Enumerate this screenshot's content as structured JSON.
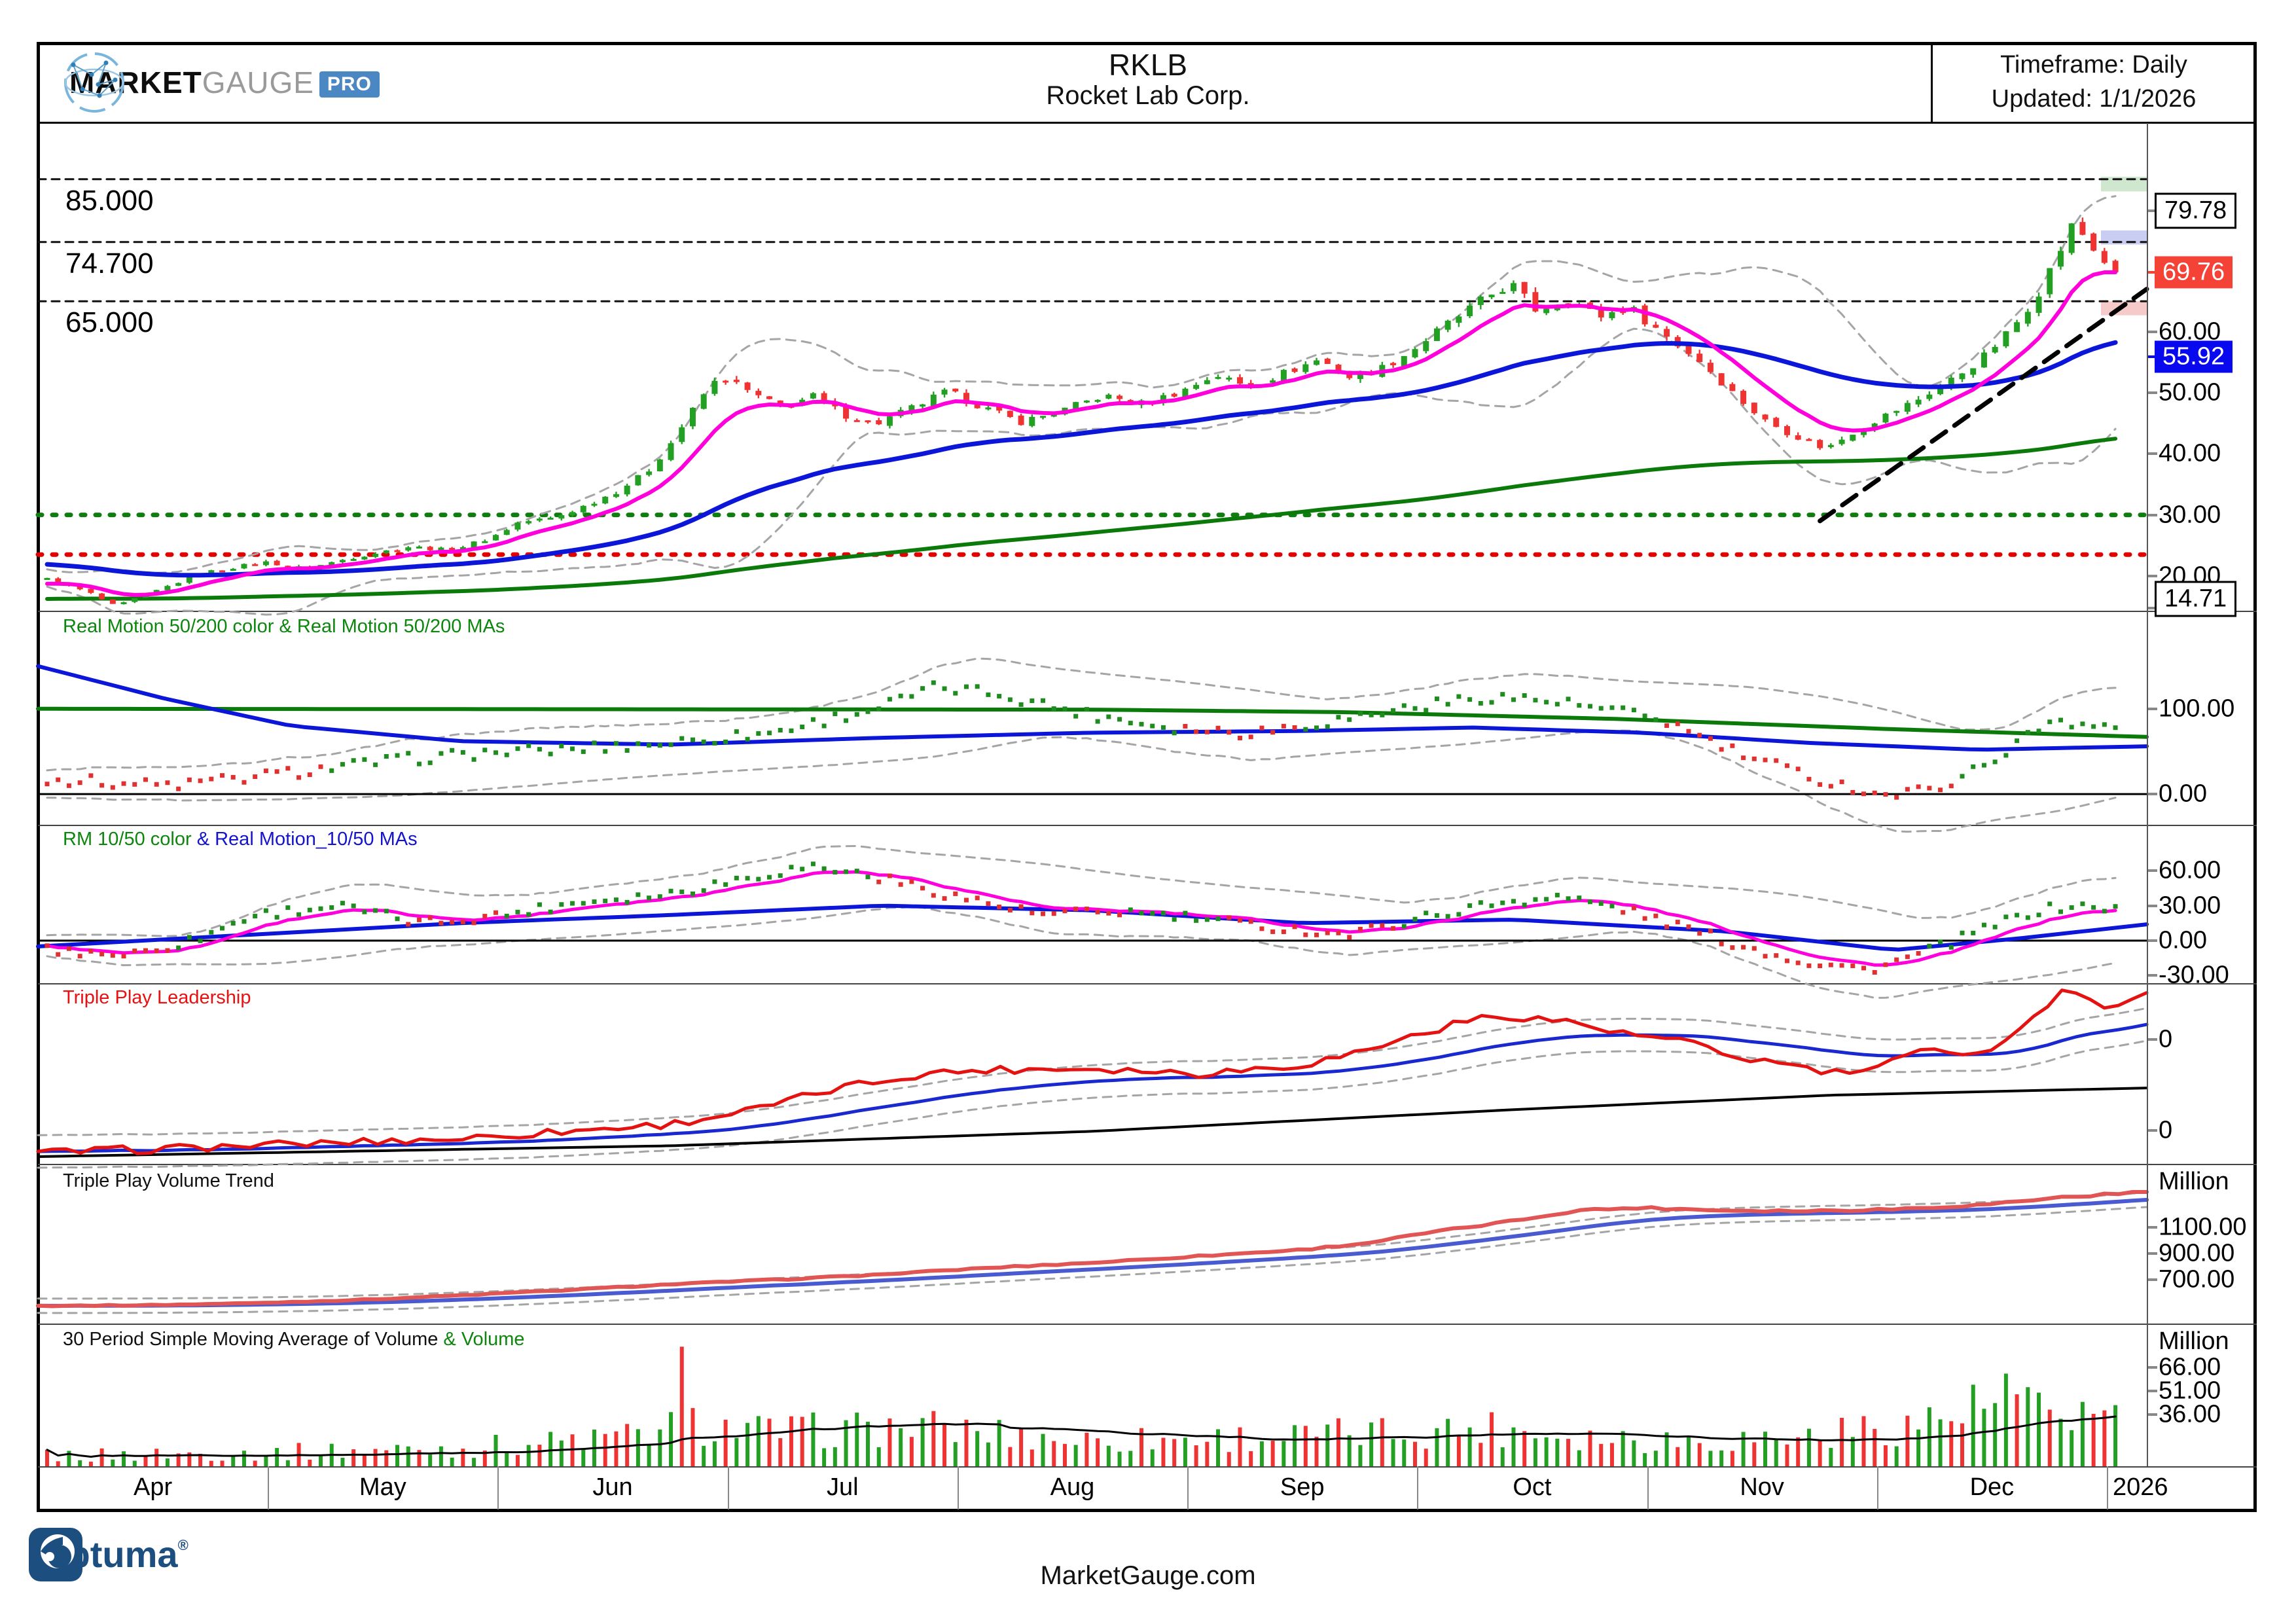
{
  "header": {
    "logo": {
      "market": "MARKET",
      "gauge": "GAUGE",
      "pro": "PRO"
    },
    "symbol": "RKLB",
    "company": "Rocket Lab Corp.",
    "timeframe": "Timeframe: Daily",
    "updated": "Updated: 1/1/2026"
  },
  "footer": {
    "optuma": "Optuma",
    "reg": "®",
    "site": "MarketGauge.com"
  },
  "colors": {
    "candle_up": "#23a023",
    "candle_down": "#ef3333",
    "ma_fast": "#ff00dd",
    "ma_50": "#0b16d8",
    "ma_200": "#0b7a0b",
    "band": "#a5a5a5",
    "badge_red": "#f44336",
    "badge_blue": "#0909ef",
    "zone_green": "#cfe7cf",
    "zone_blue": "#c9cdf2",
    "zone_pink": "#f7caca",
    "dotted_green": "#0f7d0f",
    "dotted_red": "#e00000",
    "optuma_navy": "#1c4e80",
    "pro_badge": "#4b87c2"
  },
  "x_axis": {
    "months": [
      "Apr",
      "May",
      "Jun",
      "Jul",
      "Aug",
      "Sep",
      "Oct",
      "Nov",
      "Dec"
    ],
    "year_partial": "2026"
  },
  "chart_data": [
    {
      "name": "price",
      "type": "candlestick",
      "ylim": [
        14.3,
        94.2
      ],
      "right_ticks": [
        {
          "value": 60,
          "label": "60.00"
        },
        {
          "value": 50,
          "label": "50.00"
        },
        {
          "value": 40,
          "label": "40.00"
        },
        {
          "value": 30,
          "label": "30.00"
        },
        {
          "value": 20,
          "label": "20.00"
        }
      ],
      "price_labels": [
        {
          "value": 79.78,
          "label": "79.78",
          "style": "boxed"
        },
        {
          "value": 69.76,
          "label": "69.76",
          "style": "red"
        },
        {
          "value": 55.92,
          "label": "55.92",
          "style": "blue"
        },
        {
          "value": 14.71,
          "label": "14.71",
          "style": "boxed",
          "shift": -14
        }
      ],
      "left_levels": [
        {
          "value": 85,
          "label": "85.000"
        },
        {
          "value": 74.7,
          "label": "74.700"
        },
        {
          "value": 65,
          "label": "65.000"
        }
      ],
      "dotted_lines": [
        {
          "value": 30,
          "color": "#0f7d0f"
        },
        {
          "value": 23.5,
          "color": "#e00000"
        }
      ],
      "zones": [
        {
          "from": 83.0,
          "to": 85.4,
          "color": "#cfe7cf"
        },
        {
          "from": 74.3,
          "to": 76.6,
          "color": "#c9cdf2"
        },
        {
          "from": 62.7,
          "to": 65.0,
          "color": "#f7caca"
        }
      ],
      "trendline": [
        [
          0.845,
          29
        ],
        [
          1,
          67
        ]
      ],
      "close_keyframes": [
        [
          0,
          19.5
        ],
        [
          0.02,
          17.3
        ],
        [
          0.033,
          15
        ],
        [
          0.05,
          17.2
        ],
        [
          0.075,
          20.5
        ],
        [
          0.105,
          22.3
        ],
        [
          0.125,
          21.2
        ],
        [
          0.15,
          23.2
        ],
        [
          0.175,
          24.8
        ],
        [
          0.195,
          24.2
        ],
        [
          0.215,
          26.3
        ],
        [
          0.228,
          28.8
        ],
        [
          0.245,
          29.5
        ],
        [
          0.26,
          31.5
        ],
        [
          0.275,
          33.8
        ],
        [
          0.29,
          37
        ],
        [
          0.3,
          41
        ],
        [
          0.31,
          46
        ],
        [
          0.318,
          50
        ],
        [
          0.326,
          52.8
        ],
        [
          0.34,
          50
        ],
        [
          0.355,
          47.5
        ],
        [
          0.37,
          49.5
        ],
        [
          0.385,
          46.5
        ],
        [
          0.4,
          44.8
        ],
        [
          0.42,
          47.8
        ],
        [
          0.435,
          50.2
        ],
        [
          0.45,
          48
        ],
        [
          0.47,
          45.2
        ],
        [
          0.49,
          47
        ],
        [
          0.51,
          49.5
        ],
        [
          0.53,
          48.2
        ],
        [
          0.55,
          50.5
        ],
        [
          0.565,
          53
        ],
        [
          0.58,
          51
        ],
        [
          0.6,
          53.5
        ],
        [
          0.615,
          55.5
        ],
        [
          0.63,
          52.5
        ],
        [
          0.645,
          54
        ],
        [
          0.66,
          57
        ],
        [
          0.68,
          62
        ],
        [
          0.7,
          66.5
        ],
        [
          0.708,
          67.8
        ],
        [
          0.72,
          63.5
        ],
        [
          0.735,
          65.5
        ],
        [
          0.75,
          62.5
        ],
        [
          0.765,
          64
        ],
        [
          0.78,
          60
        ],
        [
          0.8,
          55
        ],
        [
          0.815,
          50
        ],
        [
          0.83,
          45.5
        ],
        [
          0.845,
          43
        ],
        [
          0.86,
          40.8
        ],
        [
          0.875,
          44
        ],
        [
          0.89,
          46.5
        ],
        [
          0.905,
          49
        ],
        [
          0.92,
          52
        ],
        [
          0.935,
          55.5
        ],
        [
          0.95,
          60.5
        ],
        [
          0.962,
          66
        ],
        [
          0.972,
          72.5
        ],
        [
          0.98,
          78
        ],
        [
          0.988,
          74
        ],
        [
          1,
          69.76
        ]
      ],
      "last_close": 69.76,
      "ma50_last": 55.92,
      "high_label": 79.78,
      "low_label": 14.71
    },
    {
      "name": "real_motion_50_200",
      "type": "dots+lines",
      "title_parts": [
        {
          "text": "Real Motion 50/200 color & Real Motion 50/200 MAs",
          "color": "#0d860d"
        }
      ],
      "ylim": [
        -36,
        215
      ],
      "right_ticks": [
        {
          "value": 100,
          "label": "100.00"
        },
        {
          "value": 0,
          "label": "0.00"
        }
      ],
      "zero_line": 0,
      "dot_keyframes": [
        [
          0,
          18
        ],
        [
          0.03,
          14
        ],
        [
          0.06,
          10
        ],
        [
          0.1,
          20
        ],
        [
          0.135,
          30
        ],
        [
          0.17,
          40
        ],
        [
          0.21,
          48
        ],
        [
          0.25,
          52
        ],
        [
          0.3,
          60
        ],
        [
          0.35,
          72
        ],
        [
          0.4,
          100
        ],
        [
          0.43,
          125
        ],
        [
          0.46,
          118
        ],
        [
          0.5,
          95
        ],
        [
          0.545,
          78
        ],
        [
          0.58,
          72
        ],
        [
          0.62,
          85
        ],
        [
          0.66,
          102
        ],
        [
          0.7,
          115
        ],
        [
          0.73,
          108
        ],
        [
          0.78,
          88
        ],
        [
          0.82,
          45
        ],
        [
          0.86,
          15
        ],
        [
          0.89,
          -2
        ],
        [
          0.91,
          5
        ],
        [
          0.93,
          25
        ],
        [
          0.95,
          55
        ],
        [
          0.97,
          88
        ],
        [
          1,
          78
        ]
      ],
      "dot_color_segments": [
        [
          0,
          0.135,
          "red"
        ],
        [
          0.135,
          0.545,
          "green"
        ],
        [
          0.545,
          0.605,
          "red"
        ],
        [
          0.605,
          0.78,
          "green"
        ],
        [
          0.78,
          0.925,
          "red"
        ],
        [
          0.925,
          1,
          "green"
        ]
      ],
      "line_green_keyframes": [
        [
          0,
          100
        ],
        [
          0.5,
          99
        ],
        [
          0.62,
          96
        ],
        [
          0.75,
          88
        ],
        [
          0.88,
          76
        ],
        [
          1,
          67
        ]
      ],
      "line_blue_keyframes": [
        [
          0,
          150
        ],
        [
          0.06,
          112
        ],
        [
          0.12,
          80
        ],
        [
          0.2,
          62
        ],
        [
          0.3,
          58
        ],
        [
          0.4,
          66
        ],
        [
          0.5,
          72
        ],
        [
          0.6,
          74
        ],
        [
          0.68,
          78
        ],
        [
          0.76,
          72
        ],
        [
          0.84,
          60
        ],
        [
          0.92,
          52
        ],
        [
          1,
          56
        ]
      ]
    },
    {
      "name": "real_motion_10_50",
      "type": "dots+lines",
      "title_parts": [
        {
          "text": "RM 10/50 color",
          "color": "#0d860d"
        },
        {
          "text": " & Real Motion_10/50 MAs",
          "color": "#1414cc"
        }
      ],
      "ylim": [
        -36.5,
        99.4
      ],
      "right_ticks": [
        {
          "value": 60,
          "label": "60.00"
        },
        {
          "value": 30,
          "label": "30.00"
        },
        {
          "value": 0,
          "label": "0.00"
        },
        {
          "value": -30,
          "label": "-30.00"
        }
      ],
      "zero_line": 0,
      "dot_keyframes": [
        [
          0,
          -8
        ],
        [
          0.04,
          -12
        ],
        [
          0.07,
          0
        ],
        [
          0.1,
          22
        ],
        [
          0.14,
          30
        ],
        [
          0.18,
          15
        ],
        [
          0.22,
          22
        ],
        [
          0.26,
          34
        ],
        [
          0.3,
          40
        ],
        [
          0.34,
          55
        ],
        [
          0.37,
          64
        ],
        [
          0.4,
          55
        ],
        [
          0.44,
          38
        ],
        [
          0.48,
          22
        ],
        [
          0.52,
          25
        ],
        [
          0.56,
          18
        ],
        [
          0.6,
          10
        ],
        [
          0.63,
          5
        ],
        [
          0.66,
          18
        ],
        [
          0.7,
          32
        ],
        [
          0.73,
          38
        ],
        [
          0.76,
          28
        ],
        [
          0.79,
          12
        ],
        [
          0.82,
          -5
        ],
        [
          0.85,
          -18
        ],
        [
          0.88,
          -25
        ],
        [
          0.9,
          -15
        ],
        [
          0.92,
          -2
        ],
        [
          0.94,
          12
        ],
        [
          0.96,
          25
        ],
        [
          0.98,
          30
        ],
        [
          1,
          27
        ]
      ],
      "dot_color_segments": [
        [
          0,
          0.06,
          "red"
        ],
        [
          0.06,
          0.17,
          "green"
        ],
        [
          0.17,
          0.22,
          "red"
        ],
        [
          0.22,
          0.4,
          "green"
        ],
        [
          0.4,
          0.52,
          "red"
        ],
        [
          0.52,
          0.57,
          "green"
        ],
        [
          0.57,
          0.655,
          "red"
        ],
        [
          0.655,
          0.76,
          "green"
        ],
        [
          0.76,
          0.91,
          "red"
        ],
        [
          0.91,
          1,
          "green"
        ]
      ],
      "line_blue_keyframes": [
        [
          0,
          -5
        ],
        [
          0.1,
          5
        ],
        [
          0.2,
          15
        ],
        [
          0.3,
          22
        ],
        [
          0.4,
          30
        ],
        [
          0.5,
          26
        ],
        [
          0.6,
          15
        ],
        [
          0.7,
          18
        ],
        [
          0.8,
          8
        ],
        [
          0.88,
          -8
        ],
        [
          0.94,
          2
        ],
        [
          1,
          14
        ]
      ]
    },
    {
      "name": "triple_play_leadership",
      "type": "lines",
      "title_parts": [
        {
          "text": "Triple Play Leadership",
          "color": "#e81010"
        }
      ],
      "ylim": [
        0,
        100
      ],
      "right_ticks": [
        {
          "value": 68.8,
          "label": "0"
        },
        {
          "value": 18.5,
          "label": "0"
        }
      ],
      "red_keyframes": [
        [
          0,
          6
        ],
        [
          0.05,
          8
        ],
        [
          0.1,
          10
        ],
        [
          0.15,
          12
        ],
        [
          0.2,
          14
        ],
        [
          0.25,
          18
        ],
        [
          0.3,
          22
        ],
        [
          0.34,
          30
        ],
        [
          0.38,
          42
        ],
        [
          0.42,
          50
        ],
        [
          0.45,
          52
        ],
        [
          0.5,
          53
        ],
        [
          0.55,
          50
        ],
        [
          0.6,
          55
        ],
        [
          0.62,
          60
        ],
        [
          0.65,
          70
        ],
        [
          0.68,
          80
        ],
        [
          0.7,
          82
        ],
        [
          0.73,
          78
        ],
        [
          0.75,
          72
        ],
        [
          0.78,
          68
        ],
        [
          0.8,
          60
        ],
        [
          0.83,
          55
        ],
        [
          0.85,
          50
        ],
        [
          0.87,
          52
        ],
        [
          0.9,
          65
        ],
        [
          0.92,
          60
        ],
        [
          0.94,
          75
        ],
        [
          0.96,
          95
        ],
        [
          0.98,
          88
        ],
        [
          1,
          93
        ]
      ],
      "black_keyframes": [
        [
          0,
          4
        ],
        [
          0.3,
          10
        ],
        [
          0.5,
          18
        ],
        [
          0.7,
          30
        ],
        [
          0.85,
          38
        ],
        [
          1,
          42
        ]
      ]
    },
    {
      "name": "triple_play_volume_trend",
      "type": "lines",
      "title_parts": [
        {
          "text": "Triple Play Volume Trend",
          "color": "#111111"
        }
      ],
      "unit": "Million",
      "ylim": [
        365,
        1585
      ],
      "right_ticks": [
        {
          "value": 1100,
          "label": "1100.00"
        },
        {
          "value": 900,
          "label": "900.00"
        },
        {
          "value": 700,
          "label": "700.00"
        }
      ],
      "red_keyframes": [
        [
          0,
          500
        ],
        [
          0.05,
          505
        ],
        [
          0.1,
          520
        ],
        [
          0.15,
          545
        ],
        [
          0.2,
          580
        ],
        [
          0.25,
          620
        ],
        [
          0.3,
          665
        ],
        [
          0.35,
          700
        ],
        [
          0.4,
          740
        ],
        [
          0.45,
          790
        ],
        [
          0.5,
          830
        ],
        [
          0.55,
          880
        ],
        [
          0.6,
          930
        ],
        [
          0.63,
          980
        ],
        [
          0.66,
          1060
        ],
        [
          0.7,
          1150
        ],
        [
          0.73,
          1230
        ],
        [
          0.76,
          1250
        ],
        [
          0.8,
          1230
        ],
        [
          0.84,
          1225
        ],
        [
          0.88,
          1240
        ],
        [
          0.92,
          1270
        ],
        [
          0.96,
          1330
        ],
        [
          1,
          1370
        ]
      ]
    },
    {
      "name": "volume",
      "type": "bars",
      "title_parts": [
        {
          "text": "30 Period Simple Moving Average of Volume",
          "color": "#111111"
        },
        {
          "text": " & Volume",
          "color": "#0d860d"
        }
      ],
      "unit": "Million",
      "ylim": [
        3.5,
        93.6
      ],
      "right_ticks": [
        {
          "value": 66,
          "label": "66.00"
        },
        {
          "value": 51,
          "label": "51.00"
        },
        {
          "value": 36,
          "label": "36.00"
        }
      ],
      "volume_keyframes": [
        [
          0,
          10
        ],
        [
          0.1,
          12
        ],
        [
          0.2,
          15
        ],
        [
          0.28,
          22
        ],
        [
          0.31,
          30
        ],
        [
          0.35,
          25
        ],
        [
          0.42,
          28
        ],
        [
          0.5,
          20
        ],
        [
          0.6,
          22
        ],
        [
          0.65,
          25
        ],
        [
          0.7,
          28
        ],
        [
          0.75,
          22
        ],
        [
          0.8,
          20
        ],
        [
          0.85,
          22
        ],
        [
          0.9,
          30
        ],
        [
          0.94,
          40
        ],
        [
          1,
          35
        ]
      ],
      "spikes": [
        [
          0.308,
          79,
          "red"
        ],
        [
          0.93,
          55,
          "green"
        ],
        [
          0.945,
          62,
          "green"
        ],
        [
          0.962,
          50,
          "green"
        ]
      ]
    }
  ]
}
